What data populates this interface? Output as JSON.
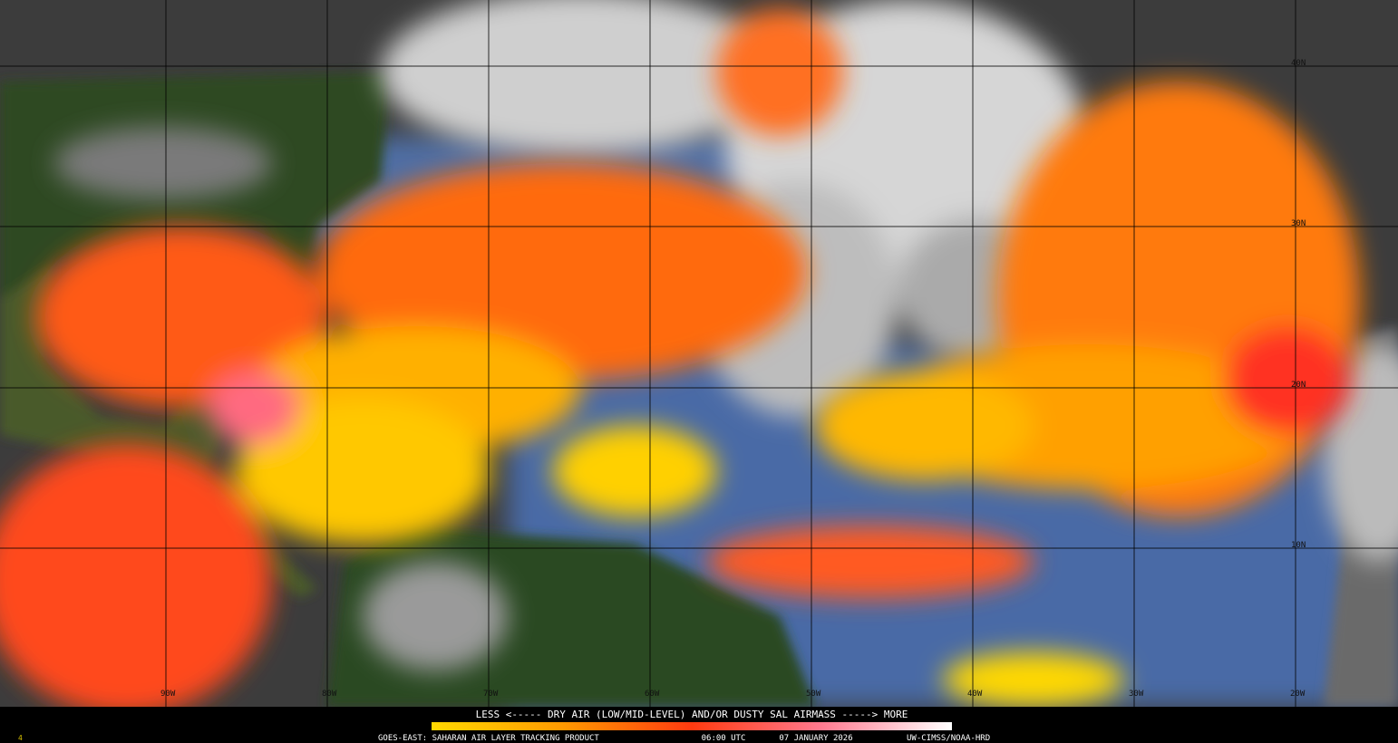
{
  "map": {
    "latitude_labels": [
      "40N",
      "30N",
      "20N",
      "10N"
    ],
    "longitude_labels": [
      "90W",
      "80W",
      "70W",
      "60W",
      "50W",
      "40W",
      "30W",
      "20W"
    ]
  },
  "footer": {
    "legend_text": "LESS <----- DRY AIR (LOW/MID-LEVEL) AND/OR DUSTY SAL AIRMASS -----> MORE",
    "product": "GOES-EAST: SAHARAN AIR LAYER TRACKING PRODUCT",
    "time": "06:00 UTC",
    "date": "07 JANUARY 2026",
    "credit": "UW-CIMSS/NOAA-HRD",
    "corner_mark": "4"
  }
}
